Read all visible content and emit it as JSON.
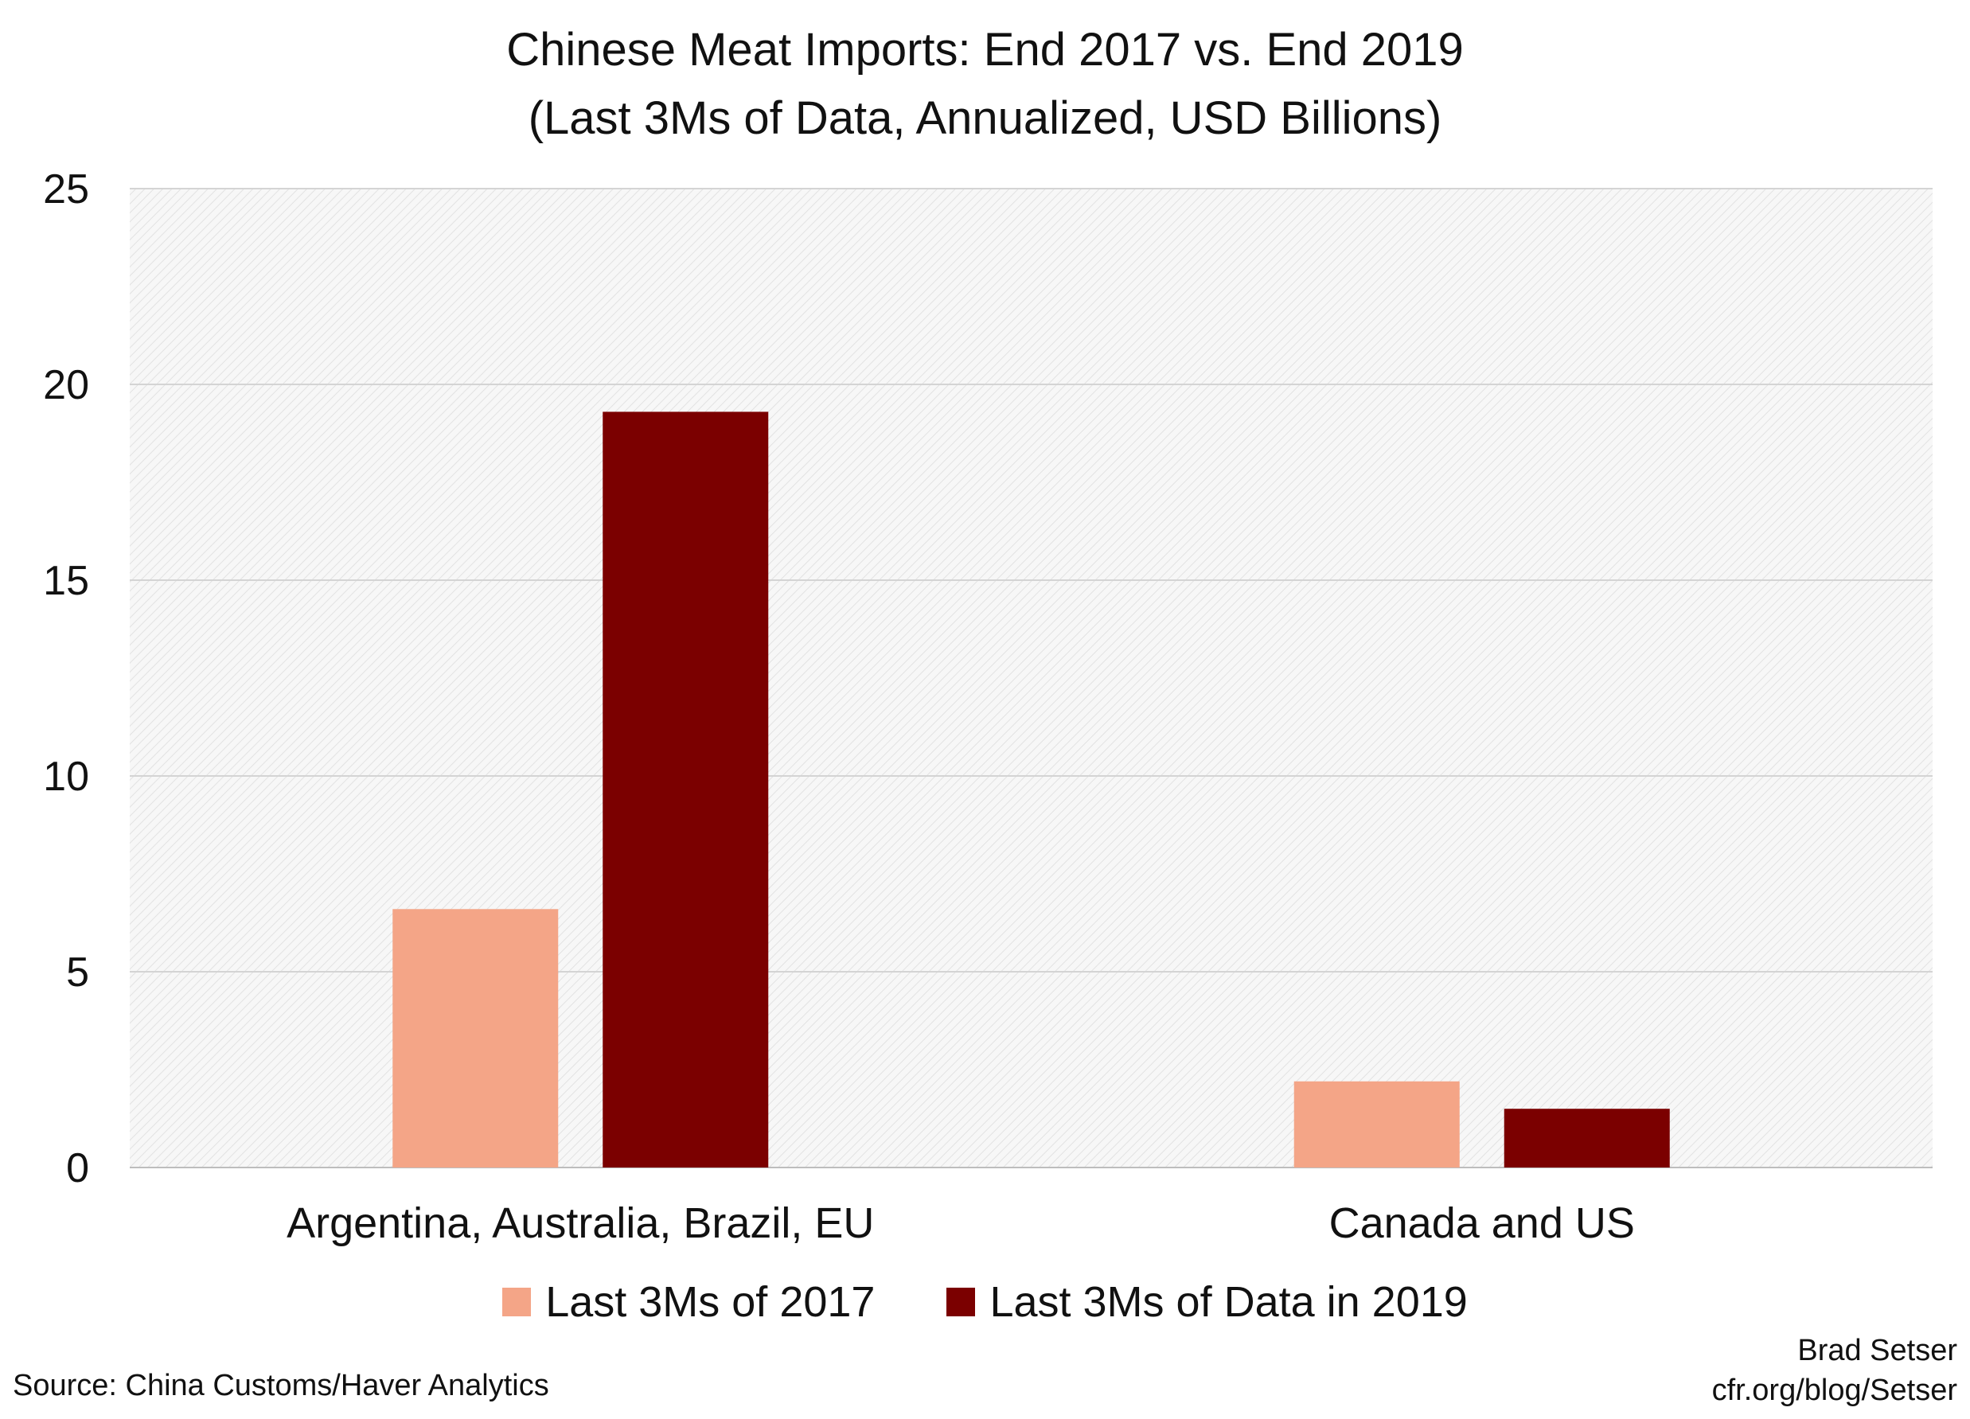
{
  "chart_data": {
    "type": "bar",
    "title": "Chinese Meat Imports: End 2017 vs. End 2019",
    "subtitle": "(Last 3Ms of Data, Annualized, USD Billions)",
    "categories": [
      "Argentina, Australia, Brazil, EU",
      "Canada and US"
    ],
    "series": [
      {
        "name": "Last 3Ms of 2017",
        "values": [
          6.6,
          2.2
        ],
        "color": "#F4A587"
      },
      {
        "name": "Last 3Ms of Data in 2019",
        "values": [
          19.3,
          1.5
        ],
        "color": "#7B0000"
      }
    ],
    "ylim": [
      0,
      25
    ],
    "yticks": [
      "0",
      "5",
      "10",
      "15",
      "20",
      "25"
    ],
    "grid": true,
    "legend_position": "bottom"
  },
  "source": "Source: China Customs/Haver Analytics",
  "credit": [
    "Brad Setser",
    "cfr.org/blog/Setser"
  ]
}
